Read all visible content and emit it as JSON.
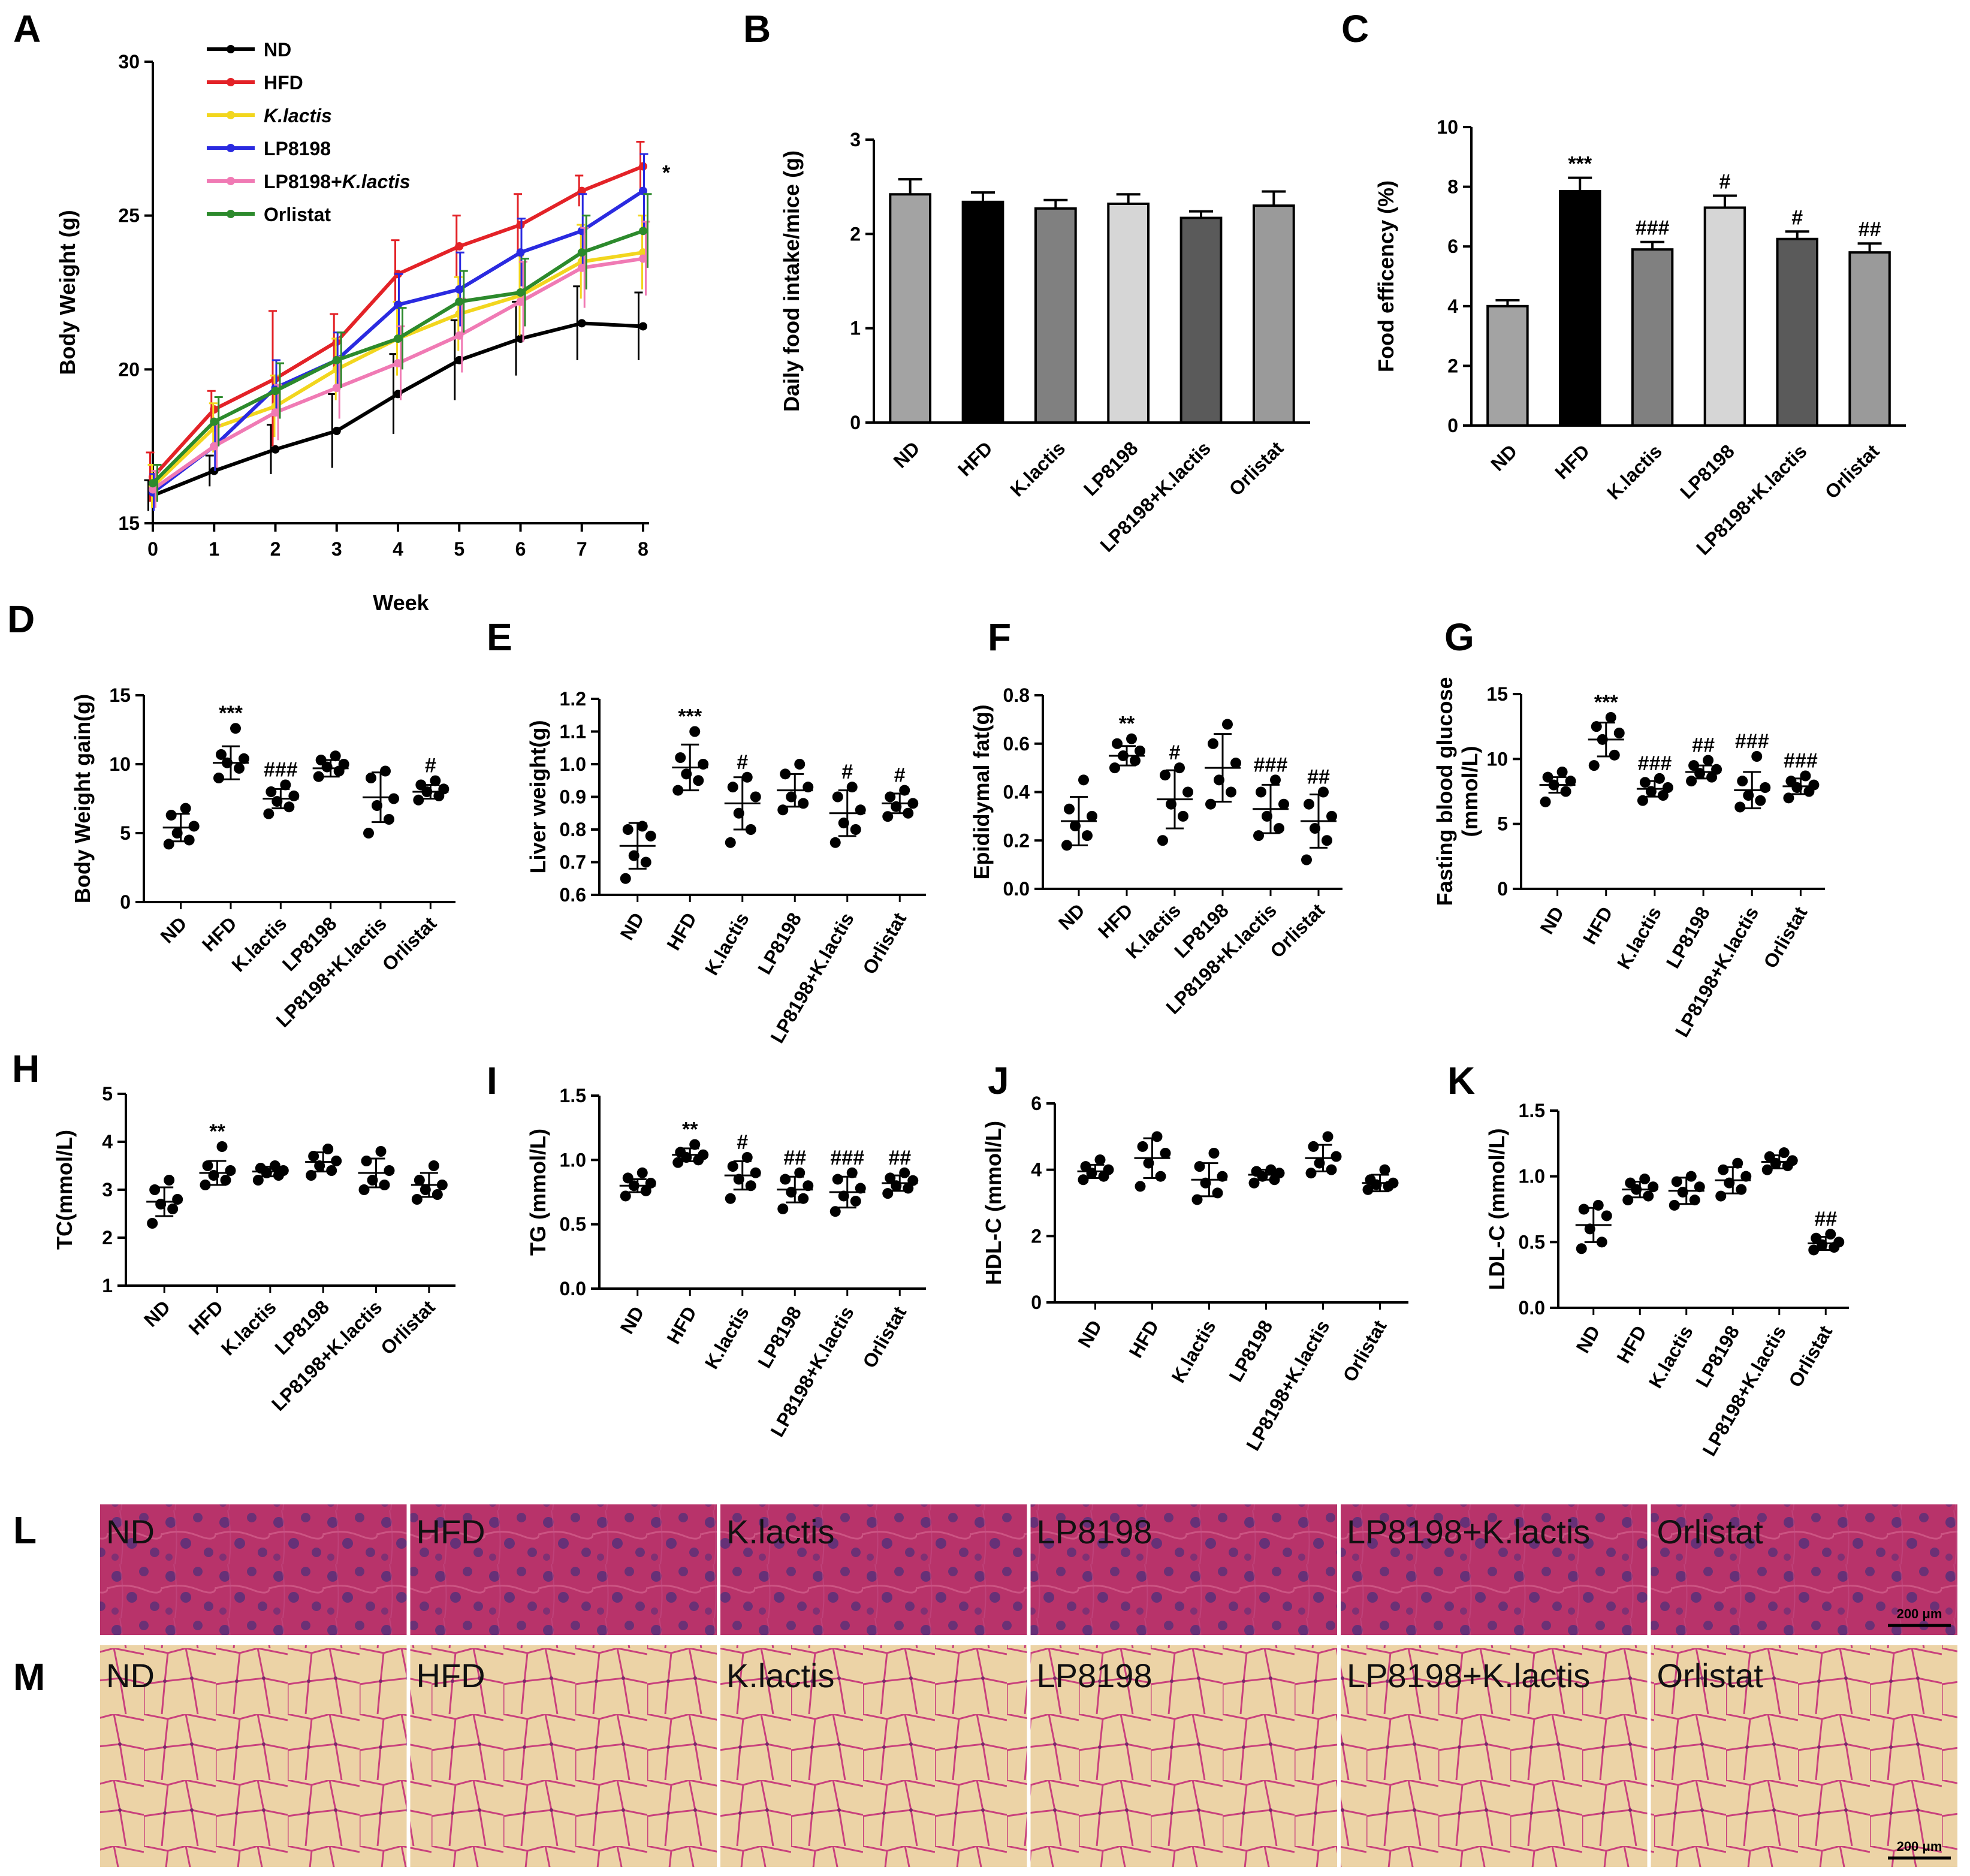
{
  "colors": {
    "black": "#000000",
    "red": "#e32227",
    "yellow": "#f2d61e",
    "blue": "#2a2ae0",
    "pink": "#f07ab4",
    "green": "#2c8a2c",
    "liver_bg": "#b8336a",
    "fat_bg": "#e8cda0"
  },
  "chart_data": [
    {
      "panel": "A",
      "type": "line",
      "xlabel": "Week",
      "ylabel": "Body Weight (g)",
      "ylim": [
        15,
        30
      ],
      "yticks": [
        "15",
        "20",
        "25",
        "30"
      ],
      "x": [
        0,
        1,
        2,
        3,
        4,
        5,
        6,
        7,
        8
      ],
      "xticks": [
        "0",
        "1",
        "2",
        "3",
        "4",
        "5",
        "6",
        "7",
        "8"
      ],
      "annotation": "*",
      "series": [
        {
          "name": "ND",
          "italic": "",
          "color": "#000000",
          "values": [
            15.9,
            16.7,
            17.4,
            18.0,
            19.2,
            20.3,
            21.0,
            21.5,
            21.4
          ],
          "err": [
            0.5,
            0.5,
            0.8,
            1.2,
            1.3,
            1.3,
            1.2,
            1.2,
            1.1
          ]
        },
        {
          "name": "HFD",
          "italic": "",
          "color": "#e32227",
          "values": [
            16.5,
            18.7,
            19.7,
            20.9,
            23.1,
            24.0,
            24.7,
            25.8,
            26.6
          ],
          "err": [
            0.8,
            0.6,
            2.2,
            0.9,
            1.1,
            1.0,
            1.0,
            0.5,
            0.8
          ]
        },
        {
          "name": "",
          "italic": "K.lactis",
          "color": "#f2d61e",
          "values": [
            16.2,
            18.1,
            18.8,
            20.0,
            21.0,
            21.8,
            22.4,
            23.5,
            23.8
          ],
          "err": [
            0.7,
            0.8,
            1.0,
            1.0,
            1.2,
            1.2,
            1.3,
            1.2,
            1.2
          ]
        },
        {
          "name": "LP8198",
          "italic": "",
          "color": "#2a2ae0",
          "values": [
            16.0,
            17.5,
            19.4,
            20.3,
            22.1,
            22.6,
            23.8,
            24.5,
            25.8
          ],
          "err": [
            0.6,
            0.8,
            0.9,
            0.9,
            1.0,
            1.2,
            1.1,
            1.2,
            1.2
          ]
        },
        {
          "name": "LP8198+",
          "italic": "K.lactis",
          "color": "#f07ab4",
          "values": [
            16.1,
            17.5,
            18.6,
            19.4,
            20.2,
            21.1,
            22.2,
            23.3,
            23.6
          ],
          "err": [
            0.6,
            0.7,
            0.9,
            1.0,
            1.2,
            1.2,
            1.3,
            1.3,
            1.2
          ]
        },
        {
          "name": "Orlistat",
          "italic": "",
          "color": "#2c8a2c",
          "values": [
            16.3,
            18.3,
            19.3,
            20.3,
            21.0,
            22.2,
            22.5,
            23.8,
            24.5
          ],
          "err": [
            0.6,
            0.8,
            0.9,
            0.9,
            1.0,
            1.0,
            1.1,
            1.2,
            1.2
          ]
        }
      ]
    },
    {
      "panel": "B",
      "type": "bar",
      "ylabel": "Daily food intake/mice (g)",
      "ylim": [
        0,
        3
      ],
      "yticks": [
        "0",
        "1",
        "2",
        "3"
      ],
      "categories": [
        "ND",
        "HFD",
        "K.lactis",
        "LP8198",
        "LP8198+K.lactis",
        "Orlistat"
      ],
      "values": [
        2.42,
        2.34,
        2.27,
        2.32,
        2.17,
        2.3
      ],
      "err": [
        0.16,
        0.1,
        0.09,
        0.1,
        0.07,
        0.15
      ],
      "bar_colors": [
        "#a3a3a3",
        "#000000",
        "#808080",
        "#d6d6d6",
        "#5a5a5a",
        "#9a9a9a"
      ],
      "sig": [
        "",
        "",
        "",
        "",
        "",
        ""
      ]
    },
    {
      "panel": "C",
      "type": "bar",
      "ylabel": "Food efficency (%)",
      "ylim": [
        0,
        10
      ],
      "yticks": [
        "0",
        "2",
        "4",
        "6",
        "8",
        "10"
      ],
      "categories": [
        "ND",
        "HFD",
        "K.lactis",
        "LP8198",
        "LP8198+K.lactis",
        "Orlistat"
      ],
      "values": [
        4.0,
        7.85,
        5.9,
        7.3,
        6.25,
        5.8
      ],
      "err": [
        0.2,
        0.45,
        0.25,
        0.4,
        0.25,
        0.3
      ],
      "bar_colors": [
        "#a3a3a3",
        "#000000",
        "#808080",
        "#d6d6d6",
        "#5a5a5a",
        "#9a9a9a"
      ],
      "sig": [
        "",
        "***",
        "###",
        "#",
        "#",
        "##"
      ]
    },
    {
      "panel": "D",
      "type": "scatter",
      "ylabel": "Body Weight gain(g)",
      "ylim": [
        0,
        15
      ],
      "yticks": [
        "0",
        "5",
        "10",
        "15"
      ],
      "categories": [
        "ND",
        "HFD",
        "K.lactis",
        "LP8198",
        "LP8198+K.lactis",
        "Orlistat"
      ],
      "groups": [
        [
          4.2,
          4.5,
          5.0,
          5.5,
          6.3,
          6.8
        ],
        [
          9.0,
          9.7,
          10.1,
          10.4,
          10.7,
          12.6
        ],
        [
          6.4,
          6.9,
          7.3,
          7.7,
          8.0,
          8.5
        ],
        [
          9.1,
          9.5,
          9.8,
          10.0,
          10.3,
          10.6
        ],
        [
          5.0,
          6.0,
          7.0,
          7.5,
          9.0,
          9.5
        ],
        [
          7.4,
          7.7,
          8.0,
          8.2,
          8.5,
          8.8
        ]
      ],
      "means": [
        5.4,
        10.1,
        7.5,
        9.7,
        7.6,
        8.0
      ],
      "sds": [
        1.0,
        1.2,
        0.7,
        0.6,
        1.8,
        0.5
      ],
      "sig": [
        "",
        "***",
        "###",
        "",
        "",
        "#"
      ],
      "label_rot": -45
    },
    {
      "panel": "E",
      "type": "scatter",
      "ylabel": "Liver weight(g)",
      "ylim": [
        0.6,
        1.2
      ],
      "yticks": [
        "0.6",
        "0.7",
        "0.8",
        "0.9",
        "1.0",
        "1.1",
        "1.2"
      ],
      "categories": [
        "ND",
        "HFD",
        "K.lactis",
        "LP8198",
        "LP8198+K.lactis",
        "Orlistat"
      ],
      "groups": [
        [
          0.65,
          0.7,
          0.72,
          0.78,
          0.8,
          0.81
        ],
        [
          0.92,
          0.95,
          0.97,
          1.0,
          1.02,
          1.1
        ],
        [
          0.76,
          0.8,
          0.85,
          0.9,
          0.93,
          0.96
        ],
        [
          0.86,
          0.88,
          0.9,
          0.93,
          0.97,
          1.0
        ],
        [
          0.76,
          0.8,
          0.82,
          0.86,
          0.9,
          0.93
        ],
        [
          0.84,
          0.85,
          0.87,
          0.88,
          0.9,
          0.92
        ]
      ],
      "means": [
        0.75,
        0.99,
        0.88,
        0.92,
        0.85,
        0.88
      ],
      "sds": [
        0.07,
        0.07,
        0.08,
        0.05,
        0.07,
        0.03
      ],
      "sig": [
        "",
        "***",
        "#",
        "",
        "#",
        "#"
      ],
      "label_rot": -60
    },
    {
      "panel": "F",
      "type": "scatter",
      "ylabel": "Epididymal fat(g)",
      "ylim": [
        0,
        0.8
      ],
      "yticks": [
        "0.0",
        "0.2",
        "0.4",
        "0.6",
        "0.8"
      ],
      "categories": [
        "ND",
        "HFD",
        "K.lactis",
        "LP8198",
        "LP8198+K.lactis",
        "Orlistat"
      ],
      "groups": [
        [
          0.18,
          0.22,
          0.26,
          0.3,
          0.33,
          0.45
        ],
        [
          0.5,
          0.53,
          0.55,
          0.57,
          0.6,
          0.62
        ],
        [
          0.2,
          0.3,
          0.35,
          0.4,
          0.47,
          0.5
        ],
        [
          0.35,
          0.4,
          0.45,
          0.52,
          0.6,
          0.68
        ],
        [
          0.22,
          0.25,
          0.3,
          0.35,
          0.4,
          0.45
        ],
        [
          0.12,
          0.2,
          0.25,
          0.3,
          0.35,
          0.4
        ]
      ],
      "means": [
        0.28,
        0.55,
        0.37,
        0.5,
        0.33,
        0.28
      ],
      "sds": [
        0.1,
        0.04,
        0.12,
        0.14,
        0.1,
        0.11
      ],
      "sig": [
        "",
        "**",
        "#",
        "",
        "###",
        "##"
      ],
      "label_rot": -45
    },
    {
      "panel": "G",
      "type": "scatter",
      "ylabel": "Fasting blood glucose\n(mmol/L)",
      "ylabel_lines": [
        "Fasting blood glucose",
        "(mmol/L)"
      ],
      "ylim": [
        0,
        15
      ],
      "yticks": [
        "0",
        "5",
        "10",
        "15"
      ],
      "categories": [
        "ND",
        "HFD",
        "K.lactis",
        "LP8198",
        "LP8198+K.lactis",
        "Orlistat"
      ],
      "groups": [
        [
          6.7,
          7.5,
          8.0,
          8.3,
          8.6,
          9.0
        ],
        [
          9.5,
          10.3,
          11.5,
          12.0,
          12.5,
          13.2
        ],
        [
          6.8,
          7.2,
          7.5,
          7.8,
          8.2,
          8.5
        ],
        [
          8.3,
          8.6,
          8.9,
          9.2,
          9.5,
          9.9
        ],
        [
          6.3,
          6.8,
          7.2,
          7.8,
          8.3,
          10.2
        ],
        [
          7.0,
          7.5,
          7.8,
          8.0,
          8.3,
          8.7
        ]
      ],
      "means": [
        8.0,
        11.5,
        7.7,
        9.0,
        7.6,
        7.9
      ],
      "sds": [
        0.6,
        1.3,
        0.6,
        0.5,
        1.4,
        0.6
      ],
      "sig": [
        "",
        "***",
        "###",
        "##",
        "###",
        "###"
      ],
      "label_rot": -60
    },
    {
      "panel": "H",
      "type": "scatter",
      "ylabel": "TC(mmol/L)",
      "ylim": [
        1,
        5
      ],
      "yticks": [
        "1",
        "2",
        "3",
        "4",
        "5"
      ],
      "categories": [
        "ND",
        "HFD",
        "K.lactis",
        "LP8198",
        "LP8198+K.lactis",
        "Orlistat"
      ],
      "groups": [
        [
          2.3,
          2.6,
          2.7,
          2.8,
          3.0,
          3.2
        ],
        [
          3.1,
          3.2,
          3.3,
          3.4,
          3.5,
          3.9
        ],
        [
          3.2,
          3.3,
          3.35,
          3.4,
          3.45,
          3.5
        ],
        [
          3.3,
          3.4,
          3.5,
          3.6,
          3.7,
          3.85
        ],
        [
          3.0,
          3.1,
          3.2,
          3.4,
          3.6,
          3.8
        ],
        [
          2.8,
          2.9,
          3.0,
          3.1,
          3.2,
          3.5
        ]
      ],
      "means": [
        2.75,
        3.35,
        3.38,
        3.58,
        3.35,
        3.1
      ],
      "sds": [
        0.3,
        0.25,
        0.1,
        0.2,
        0.3,
        0.25
      ],
      "sig": [
        "",
        "**",
        "",
        "",
        "",
        ""
      ],
      "label_rot": -45
    },
    {
      "panel": "I",
      "type": "scatter",
      "ylabel": "TG (mmol/L)",
      "ylim": [
        0,
        1.5
      ],
      "yticks": [
        "0.0",
        "0.5",
        "1.0",
        "1.5"
      ],
      "categories": [
        "ND",
        "HFD",
        "K.lactis",
        "LP8198",
        "LP8198+K.lactis",
        "Orlistat"
      ],
      "groups": [
        [
          0.72,
          0.76,
          0.8,
          0.82,
          0.86,
          0.9
        ],
        [
          0.98,
          1.0,
          1.02,
          1.04,
          1.06,
          1.12
        ],
        [
          0.7,
          0.8,
          0.85,
          0.9,
          0.95,
          1.02
        ],
        [
          0.62,
          0.7,
          0.75,
          0.8,
          0.85,
          0.9
        ],
        [
          0.6,
          0.68,
          0.72,
          0.78,
          0.85,
          0.9
        ],
        [
          0.74,
          0.78,
          0.8,
          0.84,
          0.86,
          0.9
        ]
      ],
      "means": [
        0.8,
        1.04,
        0.88,
        0.77,
        0.75,
        0.82
      ],
      "sds": [
        0.05,
        0.05,
        0.11,
        0.1,
        0.12,
        0.06
      ],
      "sig": [
        "",
        "**",
        "#",
        "##",
        "###",
        "##"
      ],
      "label_rot": -60
    },
    {
      "panel": "J",
      "type": "scatter",
      "ylabel": "HDL-C (mmol/L)",
      "ylim": [
        0,
        6
      ],
      "yticks": [
        "0",
        "2",
        "4",
        "6"
      ],
      "categories": [
        "ND",
        "HFD",
        "K.lactis",
        "LP8198",
        "LP8198+K.lactis",
        "Orlistat"
      ],
      "groups": [
        [
          3.7,
          3.8,
          3.9,
          4.0,
          4.1,
          4.3
        ],
        [
          3.5,
          3.8,
          4.2,
          4.5,
          4.7,
          5.0
        ],
        [
          3.1,
          3.3,
          3.6,
          3.8,
          4.1,
          4.5
        ],
        [
          3.6,
          3.7,
          3.8,
          3.9,
          3.95,
          4.0
        ],
        [
          3.9,
          4.0,
          4.2,
          4.4,
          4.7,
          5.0
        ],
        [
          3.4,
          3.5,
          3.55,
          3.6,
          3.7,
          4.0
        ]
      ],
      "means": [
        3.95,
        4.35,
        3.7,
        3.85,
        4.35,
        3.6
      ],
      "sds": [
        0.2,
        0.6,
        0.5,
        0.15,
        0.4,
        0.25
      ],
      "sig": [
        "",
        "",
        "",
        "",
        "",
        ""
      ],
      "label_rot": -60
    },
    {
      "panel": "K",
      "type": "scatter",
      "ylabel": "LDL-C (mmol/L)",
      "ylim": [
        0,
        1.5
      ],
      "yticks": [
        "0.0",
        "0.5",
        "1.0",
        "1.5"
      ],
      "categories": [
        "ND",
        "HFD",
        "K.lactis",
        "LP8198",
        "LP8198+K.lactis",
        "Orlistat"
      ],
      "groups": [
        [
          0.45,
          0.5,
          0.6,
          0.7,
          0.75,
          0.78
        ],
        [
          0.82,
          0.85,
          0.9,
          0.92,
          0.95,
          0.98
        ],
        [
          0.78,
          0.82,
          0.88,
          0.92,
          0.96,
          1.0
        ],
        [
          0.85,
          0.9,
          0.95,
          1.0,
          1.05,
          1.1
        ],
        [
          1.05,
          1.08,
          1.1,
          1.12,
          1.15,
          1.18
        ],
        [
          0.44,
          0.46,
          0.48,
          0.5,
          0.53,
          0.56
        ]
      ],
      "means": [
        0.63,
        0.9,
        0.89,
        0.97,
        1.11,
        0.49
      ],
      "sds": [
        0.13,
        0.06,
        0.1,
        0.1,
        0.05,
        0.05
      ],
      "sig": [
        "",
        "",
        "",
        "",
        "",
        "##"
      ],
      "label_rot": -60
    }
  ],
  "histology": {
    "L": {
      "panel": "L",
      "labels": [
        "ND",
        "HFD",
        "K.lactis",
        "LP8198",
        "LP8198+K.lactis",
        "Orlistat"
      ],
      "scale": "200 μm"
    },
    "M": {
      "panel": "M",
      "labels": [
        "ND",
        "HFD",
        "K.lactis",
        "LP8198",
        "LP8198+K.lactis",
        "Orlistat"
      ],
      "scale": "200 μm"
    }
  }
}
